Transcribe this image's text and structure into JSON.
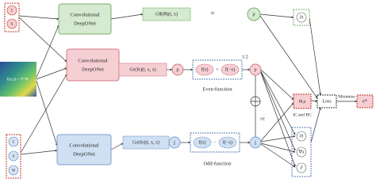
{
  "inputs": {
    "top": [
      "t",
      "x"
    ],
    "field": "f(x,t) ~ T^N",
    "bottom": [
      "t",
      "x",
      "w"
    ]
  },
  "networks": [
    [
      "Convolutional",
      "DeepONet"
    ],
    [
      "Convolutional",
      "DeepONet"
    ],
    [
      "Convolutional",
      "DeepONet"
    ]
  ],
  "operators": [
    "Gθ(fθ)(t, x)",
    "Ge(fe)(t, x, x)",
    "Go(fo)(t, x, x)"
  ],
  "equals": "=",
  "rho": "ρ",
  "j": "j",
  "even": {
    "terms": [
      "f(x)",
      "+",
      "f(−x)"
    ],
    "factor": "1/2",
    "label": "Even-function"
  },
  "odd": {
    "terms": [
      "f(x)",
      "−",
      "f(−x)"
    ],
    "label": "Odd-function"
  },
  "ce": "ce",
  "derivatives": {
    "top": "∂t",
    "bottom": [
      "∂t",
      "∇x",
      "∂"
    ]
  },
  "constraint": {
    "term": "fθ,ρ",
    "label": "IC and BC"
  },
  "loss": "Loss",
  "minimize": "Minimize",
  "result": "e*"
}
